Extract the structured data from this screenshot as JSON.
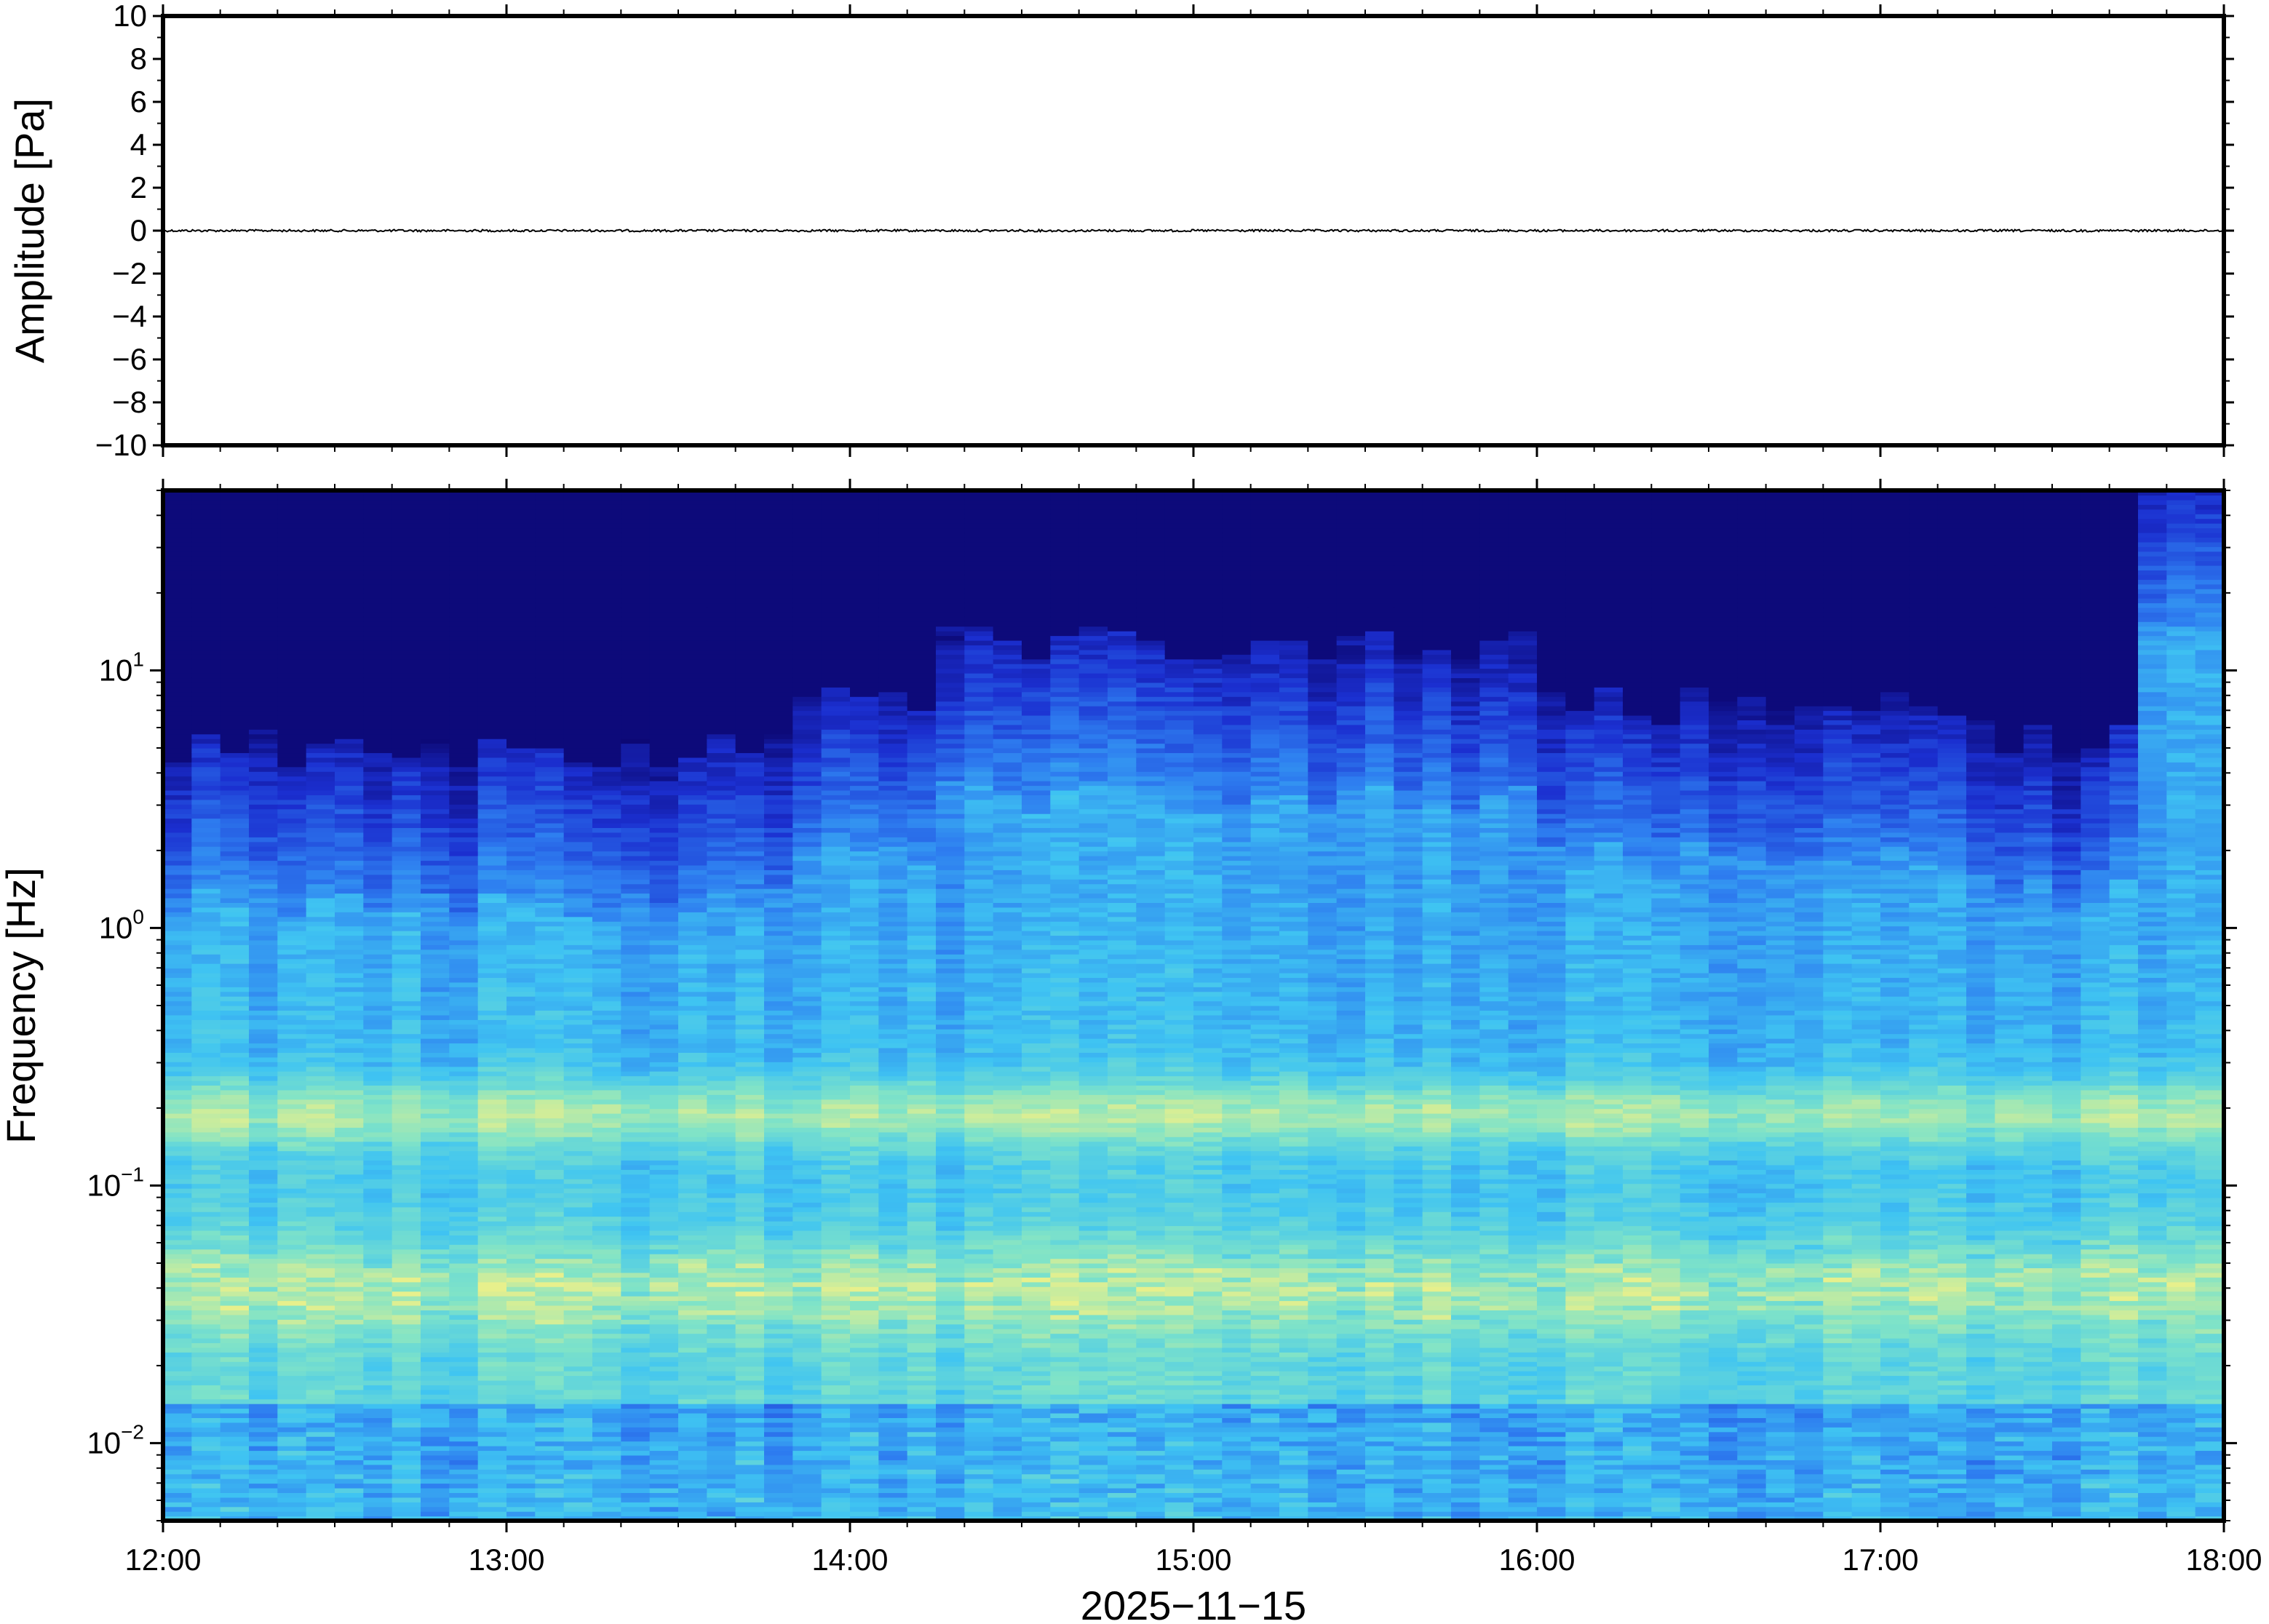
{
  "chart_data": [
    {
      "type": "line",
      "panel": "waveform",
      "title": "",
      "xlabel": "",
      "ylabel": "Amplitude [Pa]",
      "ylim": [
        -10,
        10
      ],
      "yticks": [
        -10,
        -8,
        -6,
        -4,
        -2,
        0,
        2,
        4,
        6,
        8,
        10
      ],
      "ytick_labels": [
        "−10",
        "−8",
        "−6",
        "−4",
        "−2",
        "0",
        "2",
        "4",
        "6",
        "8",
        "10"
      ],
      "xlim": [
        "12:00",
        "18:00"
      ],
      "series": [
        {
          "x": [
            "12:00",
            "13:00",
            "14:00",
            "15:00",
            "16:00",
            "17:00",
            "18:00"
          ],
          "values": [
            0,
            0,
            0,
            0,
            0,
            0,
            0
          ],
          "color": "#000000"
        }
      ],
      "grid": false
    },
    {
      "type": "heatmap",
      "panel": "spectrogram",
      "title": "",
      "xlabel": "2025−11−15",
      "ylabel": "Frequency [Hz]",
      "y_scale": "log",
      "ylim_hz": [
        0.005,
        50
      ],
      "yticks": [
        0.01,
        0.1,
        1,
        10
      ],
      "ytick_labels": [
        {
          "base": "10",
          "exp": "−2"
        },
        {
          "base": "10",
          "exp": "−1"
        },
        {
          "base": "10",
          "exp": "0"
        },
        {
          "base": "10",
          "exp": "1"
        }
      ],
      "xlim": [
        "12:00",
        "18:00"
      ],
      "xtick_labels": [
        "12:00",
        "13:00",
        "14:00",
        "15:00",
        "16:00",
        "17:00",
        "18:00"
      ],
      "colormap": [
        "#0b0670",
        "#1b2fd0",
        "#2e7ef0",
        "#3fc4f2",
        "#7fe3c8",
        "#e8f08c"
      ],
      "grid": false
    }
  ]
}
